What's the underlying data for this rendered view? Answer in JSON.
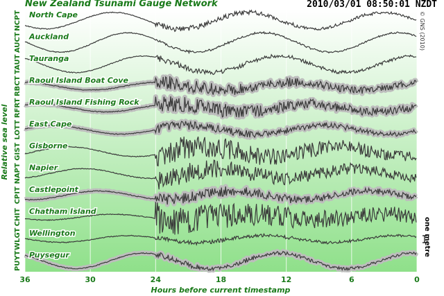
{
  "header": {
    "title": "New Zealand Tsunami Gauge Network",
    "timestamp": "2010/03/01 08:50:01 NZDT",
    "copyright": "© GNS (2010)"
  },
  "colors": {
    "title_green": "#1a7a1a",
    "background_top": "#ffffff",
    "background_bottom": "#8fe08a",
    "trace": "#3a3a3a",
    "envelope": "#bdbdbd"
  },
  "chart_data": {
    "type": "line",
    "xlabel": "Hours before current timestamp",
    "ylabel": "Relative sea level",
    "xlim": [
      36,
      0
    ],
    "xticks": [
      "36",
      "30",
      "24",
      "18",
      "12",
      "6",
      "0"
    ],
    "grid": "vertical",
    "scale_bar_label": "one metre",
    "scale_bar_metres": 1,
    "series": [
      {
        "code": "NCPT",
        "name": "North Cape",
        "envelope": false,
        "tsunami_onset_h": 24,
        "tsunami_level": 0.12,
        "tide_amplitude_m": 0.85
      },
      {
        "code": "AUCT",
        "name": "Auckland",
        "envelope": false,
        "tsunami_onset_h": 24,
        "tsunami_level": 0.05,
        "tide_amplitude_m": 1.0
      },
      {
        "code": "TAUT",
        "name": "Tauranga",
        "envelope": false,
        "tsunami_onset_h": 24,
        "tsunami_level": 0.12,
        "tide_amplitude_m": 0.85
      },
      {
        "code": "RBCT",
        "name": "Raoul Island Boat Cove",
        "envelope": true,
        "tsunami_onset_h": 24,
        "tsunami_level": 0.3,
        "tide_amplitude_m": 0.4
      },
      {
        "code": "RFRT",
        "name": "Raoul Island Fishing Rock",
        "envelope": true,
        "tsunami_onset_h": 24,
        "tsunami_level": 0.35,
        "tide_amplitude_m": 0.4
      },
      {
        "code": "LOTT",
        "name": "East Cape",
        "envelope": true,
        "tsunami_onset_h": 24,
        "tsunami_level": 0.2,
        "tide_amplitude_m": 0.45
      },
      {
        "code": "GIST",
        "name": "Gisborne",
        "envelope": false,
        "tsunami_onset_h": 24,
        "tsunami_level": 0.55,
        "tide_amplitude_m": 0.5
      },
      {
        "code": "NAPT",
        "name": "Napier",
        "envelope": false,
        "tsunami_onset_h": 24,
        "tsunami_level": 0.45,
        "tide_amplitude_m": 0.5
      },
      {
        "code": "CPIT",
        "name": "Castlepoint",
        "envelope": true,
        "tsunami_onset_h": 24,
        "tsunami_level": 0.25,
        "tide_amplitude_m": 0.45
      },
      {
        "code": "CHIT",
        "name": "Chatham Island",
        "envelope": false,
        "tsunami_onset_h": 24,
        "tsunami_level": 0.7,
        "tide_amplitude_m": 0.3
      },
      {
        "code": "WLGT",
        "name": "Wellington",
        "envelope": false,
        "tsunami_onset_h": 24,
        "tsunami_level": 0.1,
        "tide_amplitude_m": 0.35
      },
      {
        "code": "PUYT",
        "name": "Puysegur",
        "envelope": true,
        "tsunami_onset_h": 24,
        "tsunami_level": 0.12,
        "tide_amplitude_m": 0.8
      }
    ]
  }
}
